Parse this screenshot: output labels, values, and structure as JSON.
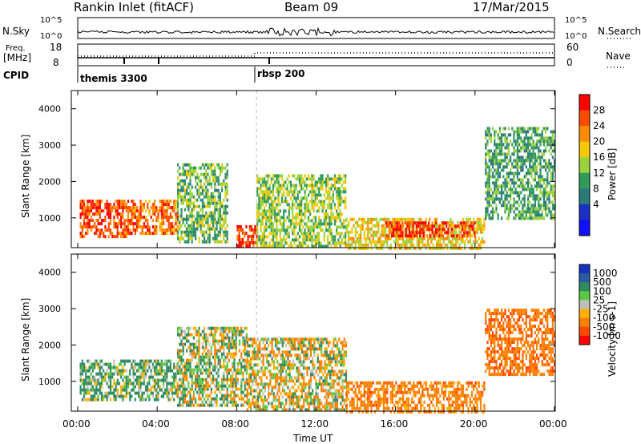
{
  "header": {
    "station": "Rankin Inlet (fitACF)",
    "beam": "Beam 09",
    "date": "17/Mar/2015"
  },
  "top_panels": {
    "nsky_label": "N.Sky",
    "nsearch_label": "N.Search",
    "nsky_ticks": [
      "10^5",
      "10^0"
    ],
    "nsearch_ticks": [
      "10^5",
      "10^0"
    ],
    "freq_label_1": "Freq.",
    "freq_label_2": "[MHz]",
    "freq_ticks": [
      "18",
      "8"
    ],
    "nave_label": "Nave",
    "nave_ticks": [
      "60",
      "0"
    ],
    "cpid_label": "CPID",
    "cpid_events": [
      {
        "label": "themis 3300",
        "time_hours": 0.0
      },
      {
        "label": "rbsp 200",
        "time_hours": 9.0
      }
    ]
  },
  "power_colorbar": {
    "label": "Power [dB]",
    "ticks": [
      "28",
      "24",
      "20",
      "16",
      "12",
      "8",
      "4"
    ],
    "colors": [
      "#ff0000",
      "#ff4a00",
      "#ff8c00",
      "#f5c800",
      "#9ad23c",
      "#2f9a5a",
      "#2a7a7a",
      "#1a30c0",
      "#1010ff"
    ]
  },
  "velocity_colorbar": {
    "label": "Velocity [m s-1]",
    "ticks": [
      "1000",
      "500",
      "100",
      "25",
      "-25",
      "-100",
      "-500",
      "-1000"
    ],
    "colors": [
      "#1a30c0",
      "#2a5aa0",
      "#2f8a60",
      "#5ac840",
      "#c0c0b8",
      "#ffb000",
      "#ff8000",
      "#ff4a00",
      "#ff0000"
    ]
  },
  "range_axis": {
    "label": "Slant Range [km]",
    "ticks": [
      "4000",
      "3000",
      "2000",
      "1000"
    ]
  },
  "time_axis": {
    "label": "Time UT",
    "ticks": [
      "00:00",
      "04:00",
      "08:00",
      "12:00",
      "16:00",
      "20:00",
      "00:00"
    ]
  },
  "chart_data": {
    "type": "heatmap",
    "title": "Rankin Inlet (fitACF) Beam 09 17/Mar/2015",
    "xlabel": "Time UT",
    "ylabel": "Slant Range [km]",
    "x_range_hours": [
      0,
      24
    ],
    "y_range_km": [
      180,
      4500
    ],
    "power_scale_db": [
      0,
      30
    ],
    "velocity_scale": [
      -1000,
      1000
    ],
    "power_regions": [
      {
        "t0": 0.1,
        "t1": 2.5,
        "r0": 500,
        "r1": 1500,
        "value_db": 26
      },
      {
        "t0": 2.5,
        "t1": 5.0,
        "r0": 600,
        "r1": 1500,
        "value_db": 24
      },
      {
        "t0": 5.0,
        "t1": 7.5,
        "r0": 300,
        "r1": 2500,
        "value_db": 12
      },
      {
        "t0": 8.0,
        "t1": 9.0,
        "r0": 200,
        "r1": 800,
        "value_db": 28
      },
      {
        "t0": 9.0,
        "t1": 13.5,
        "r0": 200,
        "r1": 2200,
        "value_db": 14
      },
      {
        "t0": 13.5,
        "t1": 20.5,
        "r0": 200,
        "r1": 1000,
        "value_db": 18
      },
      {
        "t0": 15.5,
        "t1": 20.0,
        "r0": 500,
        "r1": 900,
        "value_db": 28
      },
      {
        "t0": 20.5,
        "t1": 24.0,
        "r0": 1000,
        "r1": 3500,
        "value_db": 10
      }
    ],
    "velocity_regions": [
      {
        "t0": 0.1,
        "t1": 5.0,
        "r0": 500,
        "r1": 1600,
        "value": 150
      },
      {
        "t0": 5.0,
        "t1": 8.5,
        "r0": 300,
        "r1": 2500,
        "value": 50
      },
      {
        "t0": 8.5,
        "t1": 13.5,
        "r0": 200,
        "r1": 2200,
        "value": -50
      },
      {
        "t0": 13.5,
        "t1": 20.5,
        "r0": 200,
        "r1": 1000,
        "value": -300
      },
      {
        "t0": 20.5,
        "t1": 24.0,
        "r0": 1200,
        "r1": 3000,
        "value": -400
      }
    ]
  }
}
